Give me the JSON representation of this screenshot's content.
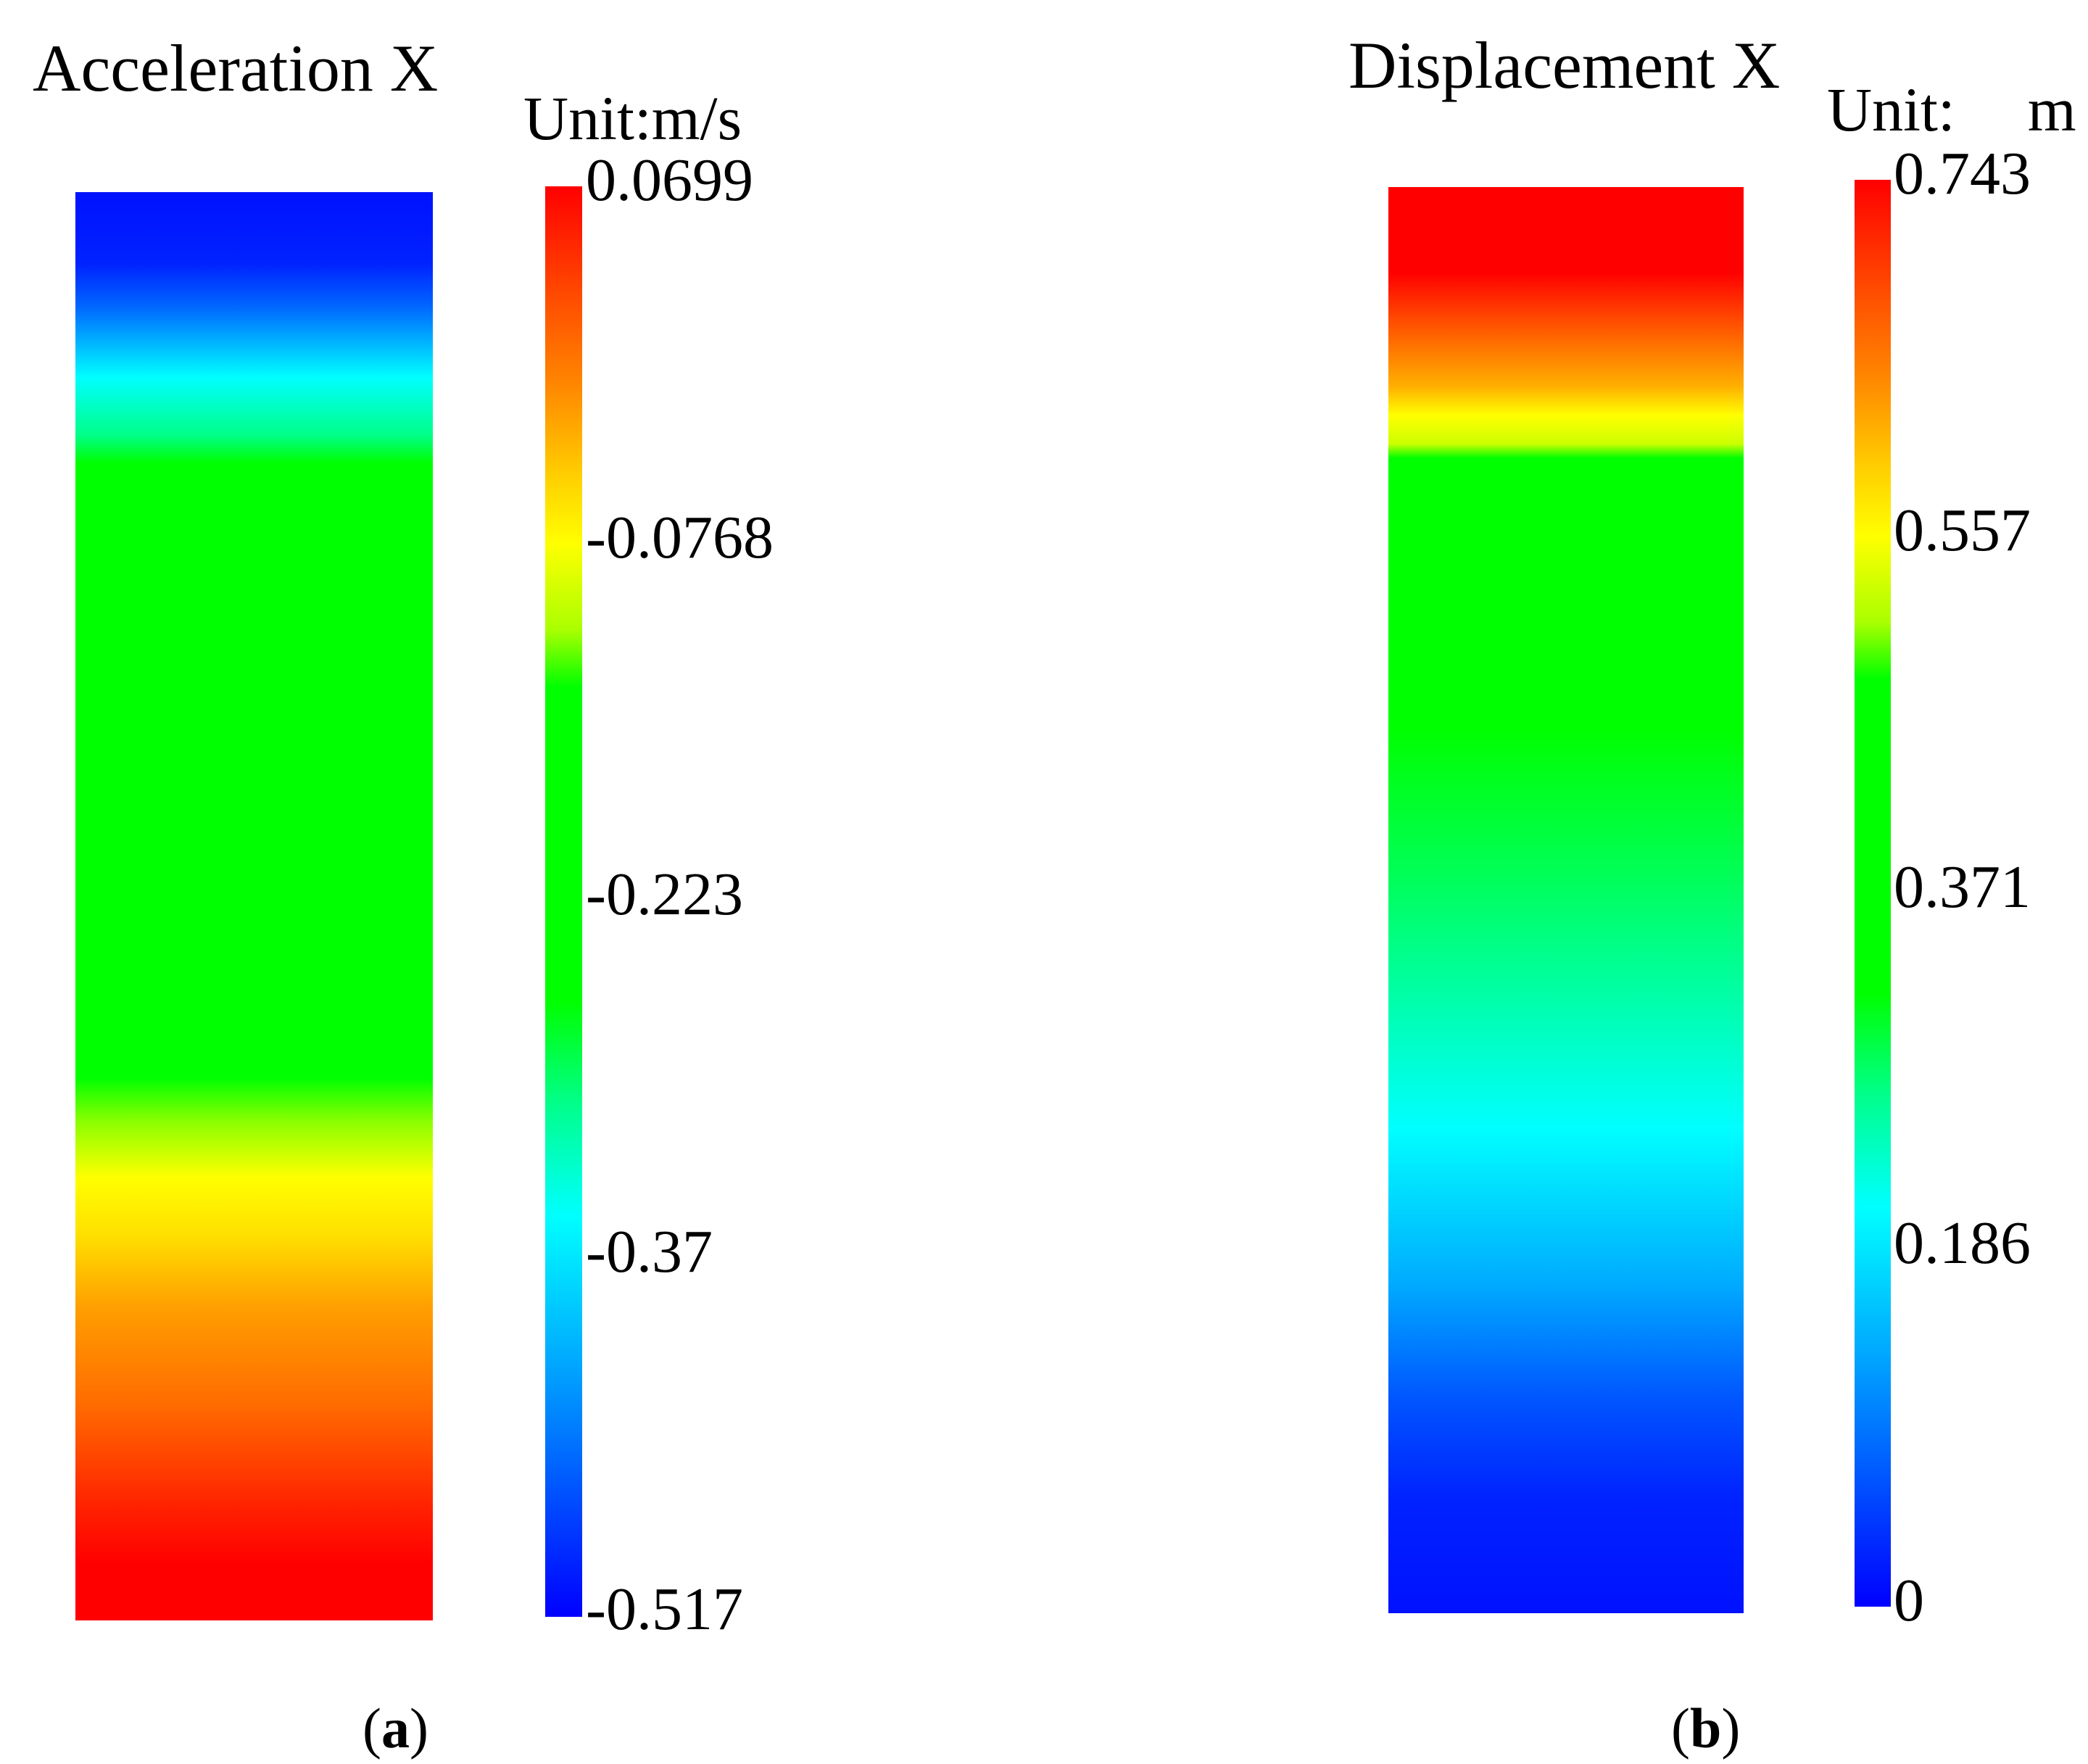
{
  "panels": {
    "a": {
      "title": "Acceleration X",
      "unit": "Unit:m/s",
      "ticks": [
        "0.0699",
        "-0.0768",
        "-0.223",
        "-0.37",
        "-0.517"
      ],
      "caption_open": "(",
      "caption_letter": "a",
      "caption_close": ")",
      "field_gradient": "linear-gradient(to bottom, #0011ff 0%, #0022ff 5%, #0066ff 8%, #00ffff 13%, #00ff88 17%, #00ff00 19%, #00ff00 62%, #88ff00 65%, #ffff00 69%, #ffe000 73%, #ffa000 78%, #ff6a00 85%, #ff2200 92%, #ff0000 96%, #ff0000 100%)"
    },
    "b": {
      "title": "Displacement X",
      "unit_label": "Unit:",
      "unit_symbol": "m",
      "ticks": [
        "0.743",
        "0.557",
        "0.371",
        "0.186",
        "0"
      ],
      "caption_open": "(",
      "caption_letter": "b",
      "caption_close": ")",
      "field_gradient": "linear-gradient(to bottom, #ff0000 0%, #ff0000 6%, #ff5a00 10%, #ffb000 14%, #ffff00 16%, #ccff00 18%, #00ff00 19%, #00ff00 38%, #00ff55 48%, #00ffaa 57%, #00ffff 66%, #00aaff 77%, #0055ff 85%, #0022ff 92%, #0011ff 100%)"
    }
  },
  "colorbar": {
    "gradient": "linear-gradient(to bottom, #ff0000 0%, #ff4400 7%, #ff8800 14%, #ffcc00 20%, #ffff00 25%, #aaff00 31%, #00ff00 35%, #00ff00 57%, #00ff88 64%, #00ffff 72%, #00aaff 82%, #0055ff 91%, #0000ff 100%)"
  }
}
